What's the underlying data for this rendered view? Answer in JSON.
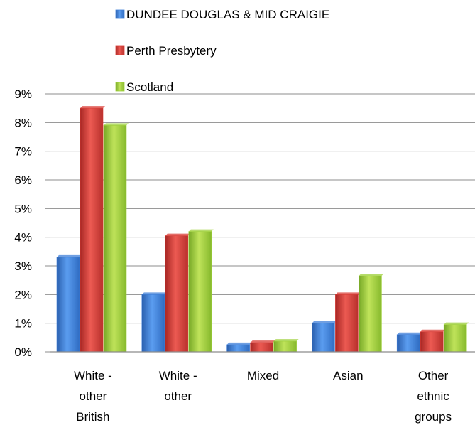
{
  "chart_data": {
    "type": "bar",
    "categories": [
      [
        "White -",
        "other",
        "British"
      ],
      [
        "White -",
        "other"
      ],
      [
        "Mixed"
      ],
      [
        "Asian"
      ],
      [
        "Other",
        "ethnic",
        "groups"
      ]
    ],
    "series": [
      {
        "name": "DUNDEE DOUGLAS & MID CRAIGIE",
        "color": "#3f7fd8",
        "values": [
          3.3,
          2.0,
          0.25,
          1.0,
          0.6
        ]
      },
      {
        "name": "Perth Presbytery",
        "color": "#d93c36",
        "values": [
          8.5,
          4.05,
          0.32,
          2.0,
          0.7
        ]
      },
      {
        "name": "Scotland",
        "color": "#9ed03a",
        "values": [
          7.9,
          4.2,
          0.37,
          2.65,
          0.95
        ]
      }
    ],
    "y_ticks": [
      "0%",
      "1%",
      "2%",
      "3%",
      "4%",
      "5%",
      "6%",
      "7%",
      "8%",
      "9%"
    ],
    "ylim": [
      0,
      9
    ],
    "unit": "%",
    "grid": true,
    "legend_position": "top"
  }
}
